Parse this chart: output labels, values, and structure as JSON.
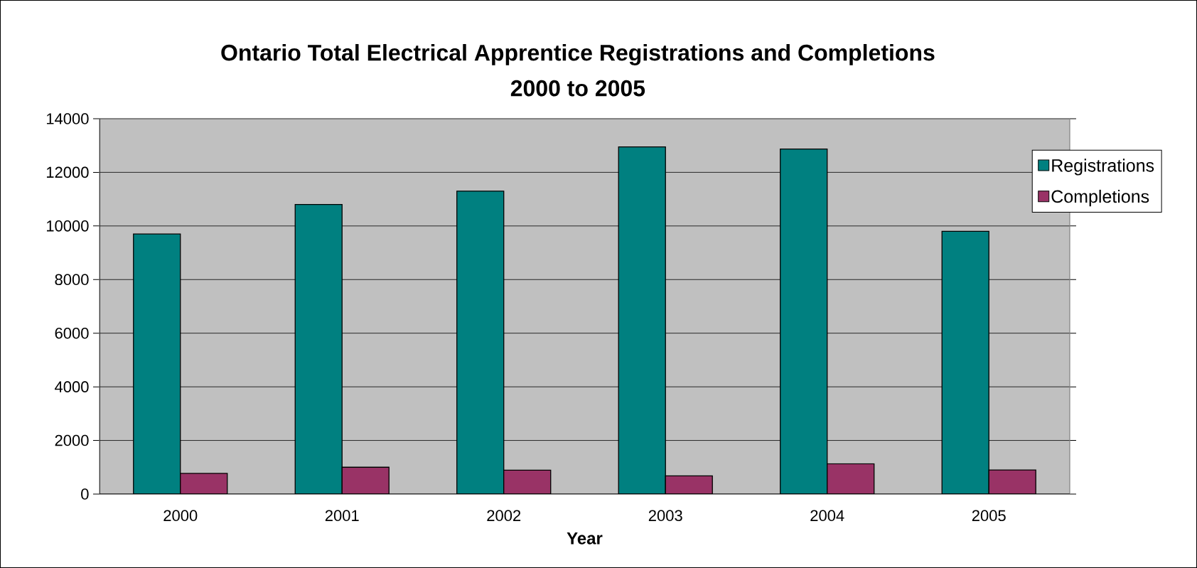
{
  "chart_data": {
    "type": "bar",
    "title": "Ontario Total Electrical Apprentice Registrations and Completions",
    "subtitle": "2000 to 2005",
    "xlabel": "Year",
    "categories": [
      "2000",
      "2001",
      "2002",
      "2003",
      "2004",
      "2005"
    ],
    "series": [
      {
        "name": "Registrations",
        "color": "#008080",
        "values": [
          9700,
          10800,
          11300,
          12950,
          12870,
          9800
        ]
      },
      {
        "name": "Completions",
        "color": "#993366",
        "values": [
          770,
          1000,
          890,
          680,
          1130,
          900
        ]
      }
    ],
    "ylim": [
      0,
      14000
    ],
    "yticks": [
      0,
      2000,
      4000,
      6000,
      8000,
      10000,
      12000,
      14000
    ],
    "grid": "y",
    "legend": "right"
  }
}
